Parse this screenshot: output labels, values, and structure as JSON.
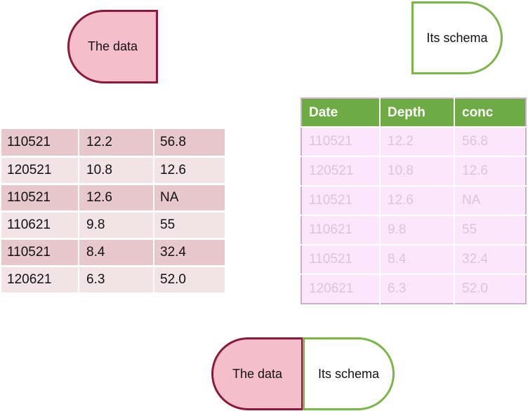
{
  "shapes": {
    "data_label": "The data",
    "schema_label": "Its schema"
  },
  "data_table": {
    "rows": [
      [
        "110521",
        "12.2",
        "56.8"
      ],
      [
        "120521",
        "10.8",
        "12.6"
      ],
      [
        "110521",
        "12.6",
        "NA"
      ],
      [
        "110621",
        "9.8",
        "55"
      ],
      [
        "110521",
        "8.4",
        "32.4"
      ],
      [
        "120621",
        "6.3",
        "52.0"
      ]
    ]
  },
  "schema_table": {
    "headers": [
      "Date",
      "Depth",
      "conc"
    ],
    "rows": [
      [
        "110521",
        "12.2",
        "56.8"
      ],
      [
        "120521",
        "10.8",
        "12.6"
      ],
      [
        "110521",
        "12.6",
        "NA"
      ],
      [
        "110621",
        "9.8",
        "55"
      ],
      [
        "110521",
        "8.4",
        "32.4"
      ],
      [
        "120621",
        "6.3",
        "52.0"
      ]
    ]
  },
  "colors": {
    "data_fill": "#f4bfcb",
    "data_border": "#8b1a3a",
    "schema_border": "#7ab648",
    "header_green": "#6fab45"
  }
}
